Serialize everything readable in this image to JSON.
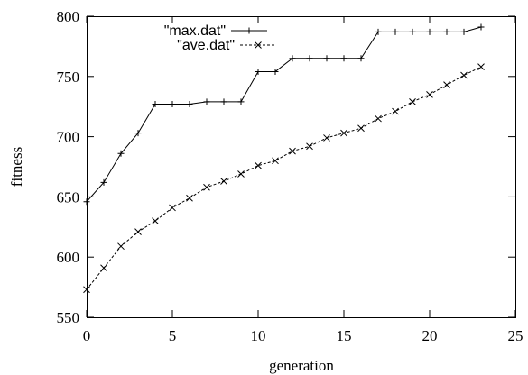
{
  "chart_data": {
    "type": "line",
    "title": "",
    "xlabel": "generation",
    "ylabel": "fitness",
    "xlim": [
      0,
      25
    ],
    "ylim": [
      550,
      800
    ],
    "xticks": [
      0,
      5,
      10,
      15,
      20,
      25
    ],
    "yticks": [
      550,
      600,
      650,
      700,
      750,
      800
    ],
    "grid": false,
    "legend_position": "top-left",
    "series": [
      {
        "name": "\"max.dat\"",
        "marker": "plus",
        "line_style": "solid",
        "color": "#000000",
        "x": [
          0,
          1,
          2,
          3,
          4,
          5,
          6,
          7,
          8,
          9,
          10,
          11,
          12,
          13,
          14,
          15,
          16,
          17,
          18,
          19,
          20,
          21,
          22,
          23
        ],
        "y": [
          646,
          662,
          686,
          703,
          727,
          727,
          727,
          729,
          729,
          729,
          754,
          754,
          765,
          765,
          765,
          765,
          765,
          787,
          787,
          787,
          787,
          787,
          787,
          791
        ]
      },
      {
        "name": "\"ave.dat\"",
        "marker": "cross",
        "line_style": "dashed",
        "color": "#000000",
        "x": [
          0,
          1,
          2,
          3,
          4,
          5,
          6,
          7,
          8,
          9,
          10,
          11,
          12,
          13,
          14,
          15,
          16,
          17,
          18,
          19,
          20,
          21,
          22,
          23
        ],
        "y": [
          573,
          591,
          609,
          621,
          630,
          641,
          649,
          658,
          663,
          669,
          676,
          680,
          688,
          692,
          699,
          703,
          707,
          715,
          721,
          729,
          735,
          743,
          751,
          758
        ]
      }
    ]
  }
}
